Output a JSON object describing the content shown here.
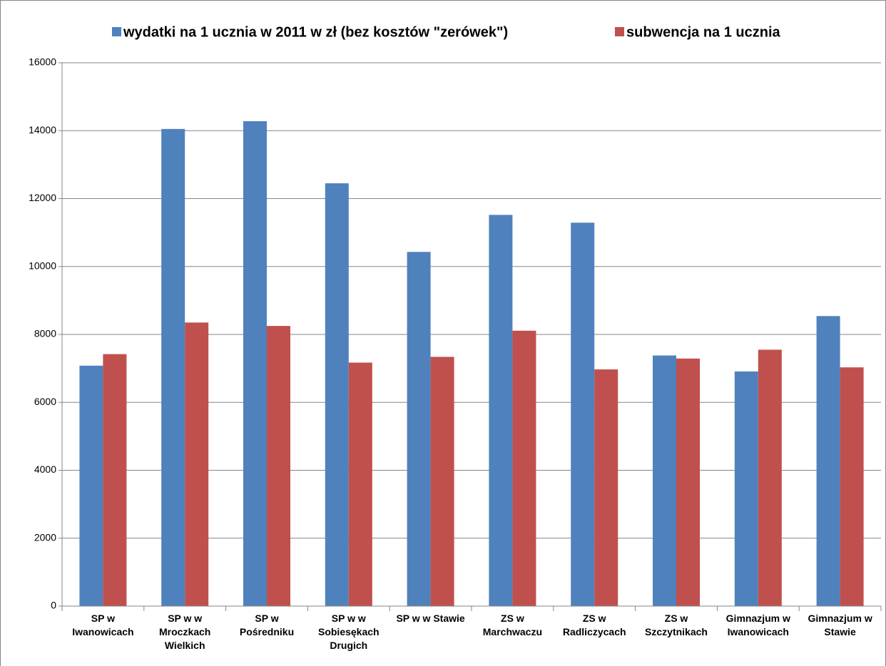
{
  "chart_data": {
    "type": "bar",
    "categories": [
      "SP w Iwanowicach",
      "SP w w Mroczkach Wielkich",
      "SP w Pośredniku",
      "SP w w Sobiesękach Drugich",
      "SP w w Stawie",
      "ZS w Marchwaczu",
      "ZS w Radliczycach",
      "ZS w Szczytnikach",
      "Gimnazjum w Iwanowicach",
      "Gimnazjum w Stawie"
    ],
    "series": [
      {
        "name": "wydatki na 1 ucznia w 2011 w zł (bez kosztów \"zerówek\")",
        "color": "#4f81bd",
        "values": [
          7080,
          14050,
          14280,
          12450,
          10430,
          11520,
          11290,
          7380,
          6910,
          8540
        ]
      },
      {
        "name": "subwencja na 1 ucznia",
        "color": "#c0504d",
        "values": [
          7420,
          8350,
          8250,
          7170,
          7340,
          8110,
          6970,
          7290,
          7550,
          7030
        ]
      }
    ],
    "ylim": [
      0,
      16000
    ],
    "yticks": [
      0,
      2000,
      4000,
      6000,
      8000,
      10000,
      12000,
      14000,
      16000
    ],
    "grid": true,
    "legend": "top"
  }
}
